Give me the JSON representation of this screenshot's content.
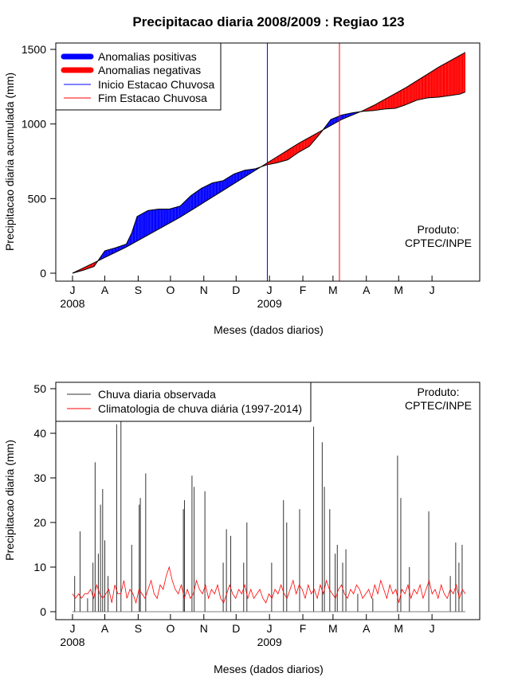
{
  "chart_data": [
    {
      "type": "area",
      "title": "Precipitacao diaria 2008/2009 : Regiao 123",
      "xlabel": "Meses (dados diarios)",
      "ylabel": "Precipitacao diaria acumulada (mm)",
      "xlim_days": [
        0,
        365
      ],
      "ylim": [
        0,
        1500
      ],
      "yticks": [
        0,
        500,
        1000,
        1500
      ],
      "month_ticks": [
        {
          "label": "J",
          "day": 0
        },
        {
          "label": "A",
          "day": 30
        },
        {
          "label": "S",
          "day": 61
        },
        {
          "label": "O",
          "day": 91
        },
        {
          "label": "N",
          "day": 122
        },
        {
          "label": "D",
          "day": 152
        },
        {
          "label": "J",
          "day": 183
        },
        {
          "label": "F",
          "day": 214
        },
        {
          "label": "M",
          "day": 242
        },
        {
          "label": "A",
          "day": 273
        },
        {
          "label": "M",
          "day": 303
        },
        {
          "label": "J",
          "day": 334
        }
      ],
      "year_labels": [
        {
          "label": "2008",
          "day": 0
        },
        {
          "label": "2009",
          "day": 183
        }
      ],
      "observed_accumulated": {
        "x": [
          0,
          10,
          20,
          30,
          40,
          50,
          55,
          60,
          70,
          80,
          90,
          100,
          110,
          120,
          130,
          140,
          150,
          160,
          170,
          180,
          190,
          200,
          210,
          220,
          230,
          240,
          250,
          260,
          270,
          280,
          290,
          300,
          310,
          320,
          330,
          340,
          350,
          360,
          365
        ],
        "y": [
          0,
          20,
          45,
          150,
          170,
          195,
          270,
          380,
          420,
          430,
          430,
          450,
          520,
          570,
          605,
          620,
          665,
          690,
          700,
          725,
          740,
          760,
          810,
          850,
          935,
          1030,
          1060,
          1075,
          1085,
          1090,
          1100,
          1105,
          1130,
          1160,
          1175,
          1180,
          1190,
          1200,
          1215
        ]
      },
      "climatology_accumulated": {
        "x": [
          0,
          10,
          20,
          30,
          40,
          50,
          60,
          70,
          80,
          90,
          100,
          110,
          120,
          130,
          140,
          150,
          160,
          170,
          180,
          190,
          200,
          210,
          220,
          230,
          240,
          250,
          260,
          270,
          280,
          290,
          300,
          310,
          320,
          330,
          340,
          350,
          360,
          365
        ],
        "y": [
          0,
          35,
          70,
          105,
          140,
          175,
          215,
          255,
          295,
          335,
          375,
          420,
          465,
          510,
          555,
          600,
          645,
          690,
          735,
          780,
          825,
          870,
          910,
          950,
          990,
          1030,
          1060,
          1090,
          1125,
          1165,
          1205,
          1245,
          1290,
          1335,
          1380,
          1420,
          1460,
          1480
        ]
      },
      "vlines": [
        {
          "name": "Inicio Estacao Chuvosa",
          "day": 181,
          "color": "#0000ff"
        },
        {
          "name": "Fim Estacao Chuvosa",
          "day": 248,
          "color": "#ff0000"
        }
      ],
      "legend": [
        {
          "label": "Anomalias positivas",
          "color": "#0000ff",
          "kind": "thick"
        },
        {
          "label": "Anomalias negativas",
          "color": "#ff0000",
          "kind": "thick"
        },
        {
          "label": "Inicio Estacao Chuvosa",
          "color": "#0000ff",
          "kind": "line"
        },
        {
          "label": "Fim Estacao Chuvosa",
          "color": "#ff0000",
          "kind": "line"
        }
      ],
      "legend_position": "top-left",
      "credit": [
        "Produto:",
        "CPTEC/INPE"
      ]
    },
    {
      "type": "line",
      "xlabel": "Meses (dados diarios)",
      "ylabel": "Precipitacao diaria (mm)",
      "xlim_days": [
        0,
        365
      ],
      "ylim": [
        0,
        50
      ],
      "yticks": [
        0,
        10,
        20,
        30,
        40,
        50
      ],
      "observed_daily_peaks": [
        {
          "day": 2,
          "mm": 8
        },
        {
          "day": 7,
          "mm": 18
        },
        {
          "day": 14,
          "mm": 3
        },
        {
          "day": 19,
          "mm": 11
        },
        {
          "day": 21,
          "mm": 33.5
        },
        {
          "day": 24,
          "mm": 13
        },
        {
          "day": 26,
          "mm": 24
        },
        {
          "day": 28,
          "mm": 27.5
        },
        {
          "day": 30,
          "mm": 16
        },
        {
          "day": 33,
          "mm": 8
        },
        {
          "day": 41,
          "mm": 42
        },
        {
          "day": 45,
          "mm": 43
        },
        {
          "day": 55,
          "mm": 15
        },
        {
          "day": 62,
          "mm": 24
        },
        {
          "day": 63,
          "mm": 25.5
        },
        {
          "day": 68,
          "mm": 31
        },
        {
          "day": 103,
          "mm": 23
        },
        {
          "day": 104,
          "mm": 25
        },
        {
          "day": 111,
          "mm": 30.5
        },
        {
          "day": 113,
          "mm": 28
        },
        {
          "day": 123,
          "mm": 27
        },
        {
          "day": 140,
          "mm": 11
        },
        {
          "day": 143,
          "mm": 18.5
        },
        {
          "day": 147,
          "mm": 17
        },
        {
          "day": 159,
          "mm": 11
        },
        {
          "day": 162,
          "mm": 20
        },
        {
          "day": 185,
          "mm": 11
        },
        {
          "day": 196,
          "mm": 25
        },
        {
          "day": 199,
          "mm": 20
        },
        {
          "day": 211,
          "mm": 23
        },
        {
          "day": 224,
          "mm": 41.5
        },
        {
          "day": 232,
          "mm": 38
        },
        {
          "day": 234,
          "mm": 28
        },
        {
          "day": 239,
          "mm": 23
        },
        {
          "day": 244,
          "mm": 13
        },
        {
          "day": 246,
          "mm": 15
        },
        {
          "day": 251,
          "mm": 11
        },
        {
          "day": 254,
          "mm": 14
        },
        {
          "day": 265,
          "mm": 4
        },
        {
          "day": 279,
          "mm": 3
        },
        {
          "day": 302,
          "mm": 35
        },
        {
          "day": 305,
          "mm": 25.5
        },
        {
          "day": 313,
          "mm": 10
        },
        {
          "day": 331,
          "mm": 22.5
        },
        {
          "day": 351,
          "mm": 8
        },
        {
          "day": 356,
          "mm": 15.5
        },
        {
          "day": 359,
          "mm": 11
        },
        {
          "day": 362,
          "mm": 15
        }
      ],
      "climatology_daily": [
        4,
        3,
        4,
        3,
        4,
        4,
        5,
        3,
        6,
        4,
        3,
        4,
        5,
        2,
        6,
        4,
        4,
        7,
        3,
        5,
        4,
        2,
        5,
        4,
        3,
        5,
        7,
        4,
        3,
        6,
        5,
        8,
        10,
        7,
        5,
        4,
        6,
        3,
        5,
        3,
        4,
        7,
        5,
        4,
        6,
        3,
        5,
        4,
        6,
        3,
        2,
        4,
        6,
        4,
        3,
        5,
        4,
        6,
        3,
        5,
        3,
        4,
        5,
        3,
        2,
        4,
        3,
        5,
        4,
        6,
        4,
        3,
        5,
        7,
        4,
        6,
        5,
        3,
        6,
        4,
        5,
        3,
        6,
        4,
        7,
        5,
        4,
        3,
        5,
        6,
        4,
        3,
        5,
        4,
        6,
        5,
        3,
        4,
        5,
        3,
        6,
        4,
        7,
        5,
        3,
        6,
        4,
        5,
        2,
        5,
        4,
        6,
        3,
        5,
        4,
        6,
        3,
        5,
        7,
        4,
        5,
        3,
        6,
        4,
        3,
        5,
        4,
        6,
        3,
        5,
        4
      ],
      "legend": [
        {
          "label": "Chuva diaria observada",
          "color": "#333333"
        },
        {
          "label": "Climatologia de chuva diária (1997-2014)",
          "color": "#ff0000"
        }
      ],
      "legend_position": "top-left",
      "credit": [
        "Produto:",
        "CPTEC/INPE"
      ]
    }
  ]
}
